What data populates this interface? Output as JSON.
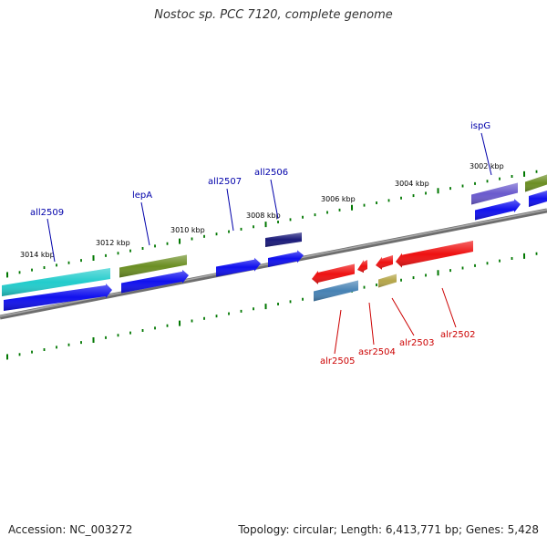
{
  "title": "Nostoc sp. PCC 7120, complete genome",
  "footer": {
    "accession": "Accession: NC_003272",
    "summary": "Topology: circular; Length: 6,413,771 bp; Genes: 5,428"
  },
  "colors": {
    "backbone": "#808080",
    "tick": "#007700",
    "forward_label": "#0000aa",
    "reverse_label": "#cc0000"
  },
  "ticks": [
    {
      "label": "3014 kbp"
    },
    {
      "label": "3012 kbp"
    },
    {
      "label": "3010 kbp"
    },
    {
      "label": "3008 kbp"
    },
    {
      "label": "3006 kbp"
    },
    {
      "label": "3004 kbp"
    },
    {
      "label": "3002 kbp"
    }
  ],
  "forward_labels": [
    {
      "name": "all2509"
    },
    {
      "name": "lepA"
    },
    {
      "name": "all2507"
    },
    {
      "name": "all2506"
    },
    {
      "name": "ispG"
    }
  ],
  "reverse_labels": [
    {
      "name": "alr2505"
    },
    {
      "name": "asr2504"
    },
    {
      "name": "alr2503"
    },
    {
      "name": "alr2502"
    }
  ],
  "features": [
    {
      "kind": "cog-bar",
      "color": "#22cccc"
    },
    {
      "kind": "gene-arrow",
      "color": "#1010ee"
    },
    {
      "kind": "cog-bar",
      "color": "#6b8e23"
    },
    {
      "kind": "gene-arrow",
      "color": "#1010ee"
    },
    {
      "kind": "gene-arrow",
      "color": "#1010ee"
    },
    {
      "kind": "cog-bar",
      "color": "#1a1a7a"
    },
    {
      "kind": "gene-arrow",
      "color": "#1010ee"
    },
    {
      "kind": "cog-bar",
      "color": "#6a5acd"
    },
    {
      "kind": "gene-arrow",
      "color": "#1010ee"
    },
    {
      "kind": "cog-bar",
      "color": "#6b8e23"
    },
    {
      "kind": "gene-arrow",
      "color": "#1010ee"
    },
    {
      "kind": "gene-arrow",
      "color": "#ee1111"
    },
    {
      "kind": "cog-bar",
      "color": "#4682b4"
    },
    {
      "kind": "gene-arrow",
      "color": "#ee1111"
    },
    {
      "kind": "gene-arrow",
      "color": "#ee1111"
    },
    {
      "kind": "cog-bar",
      "color": "#b5a64a"
    },
    {
      "kind": "gene-arrow",
      "color": "#ee1111"
    }
  ]
}
